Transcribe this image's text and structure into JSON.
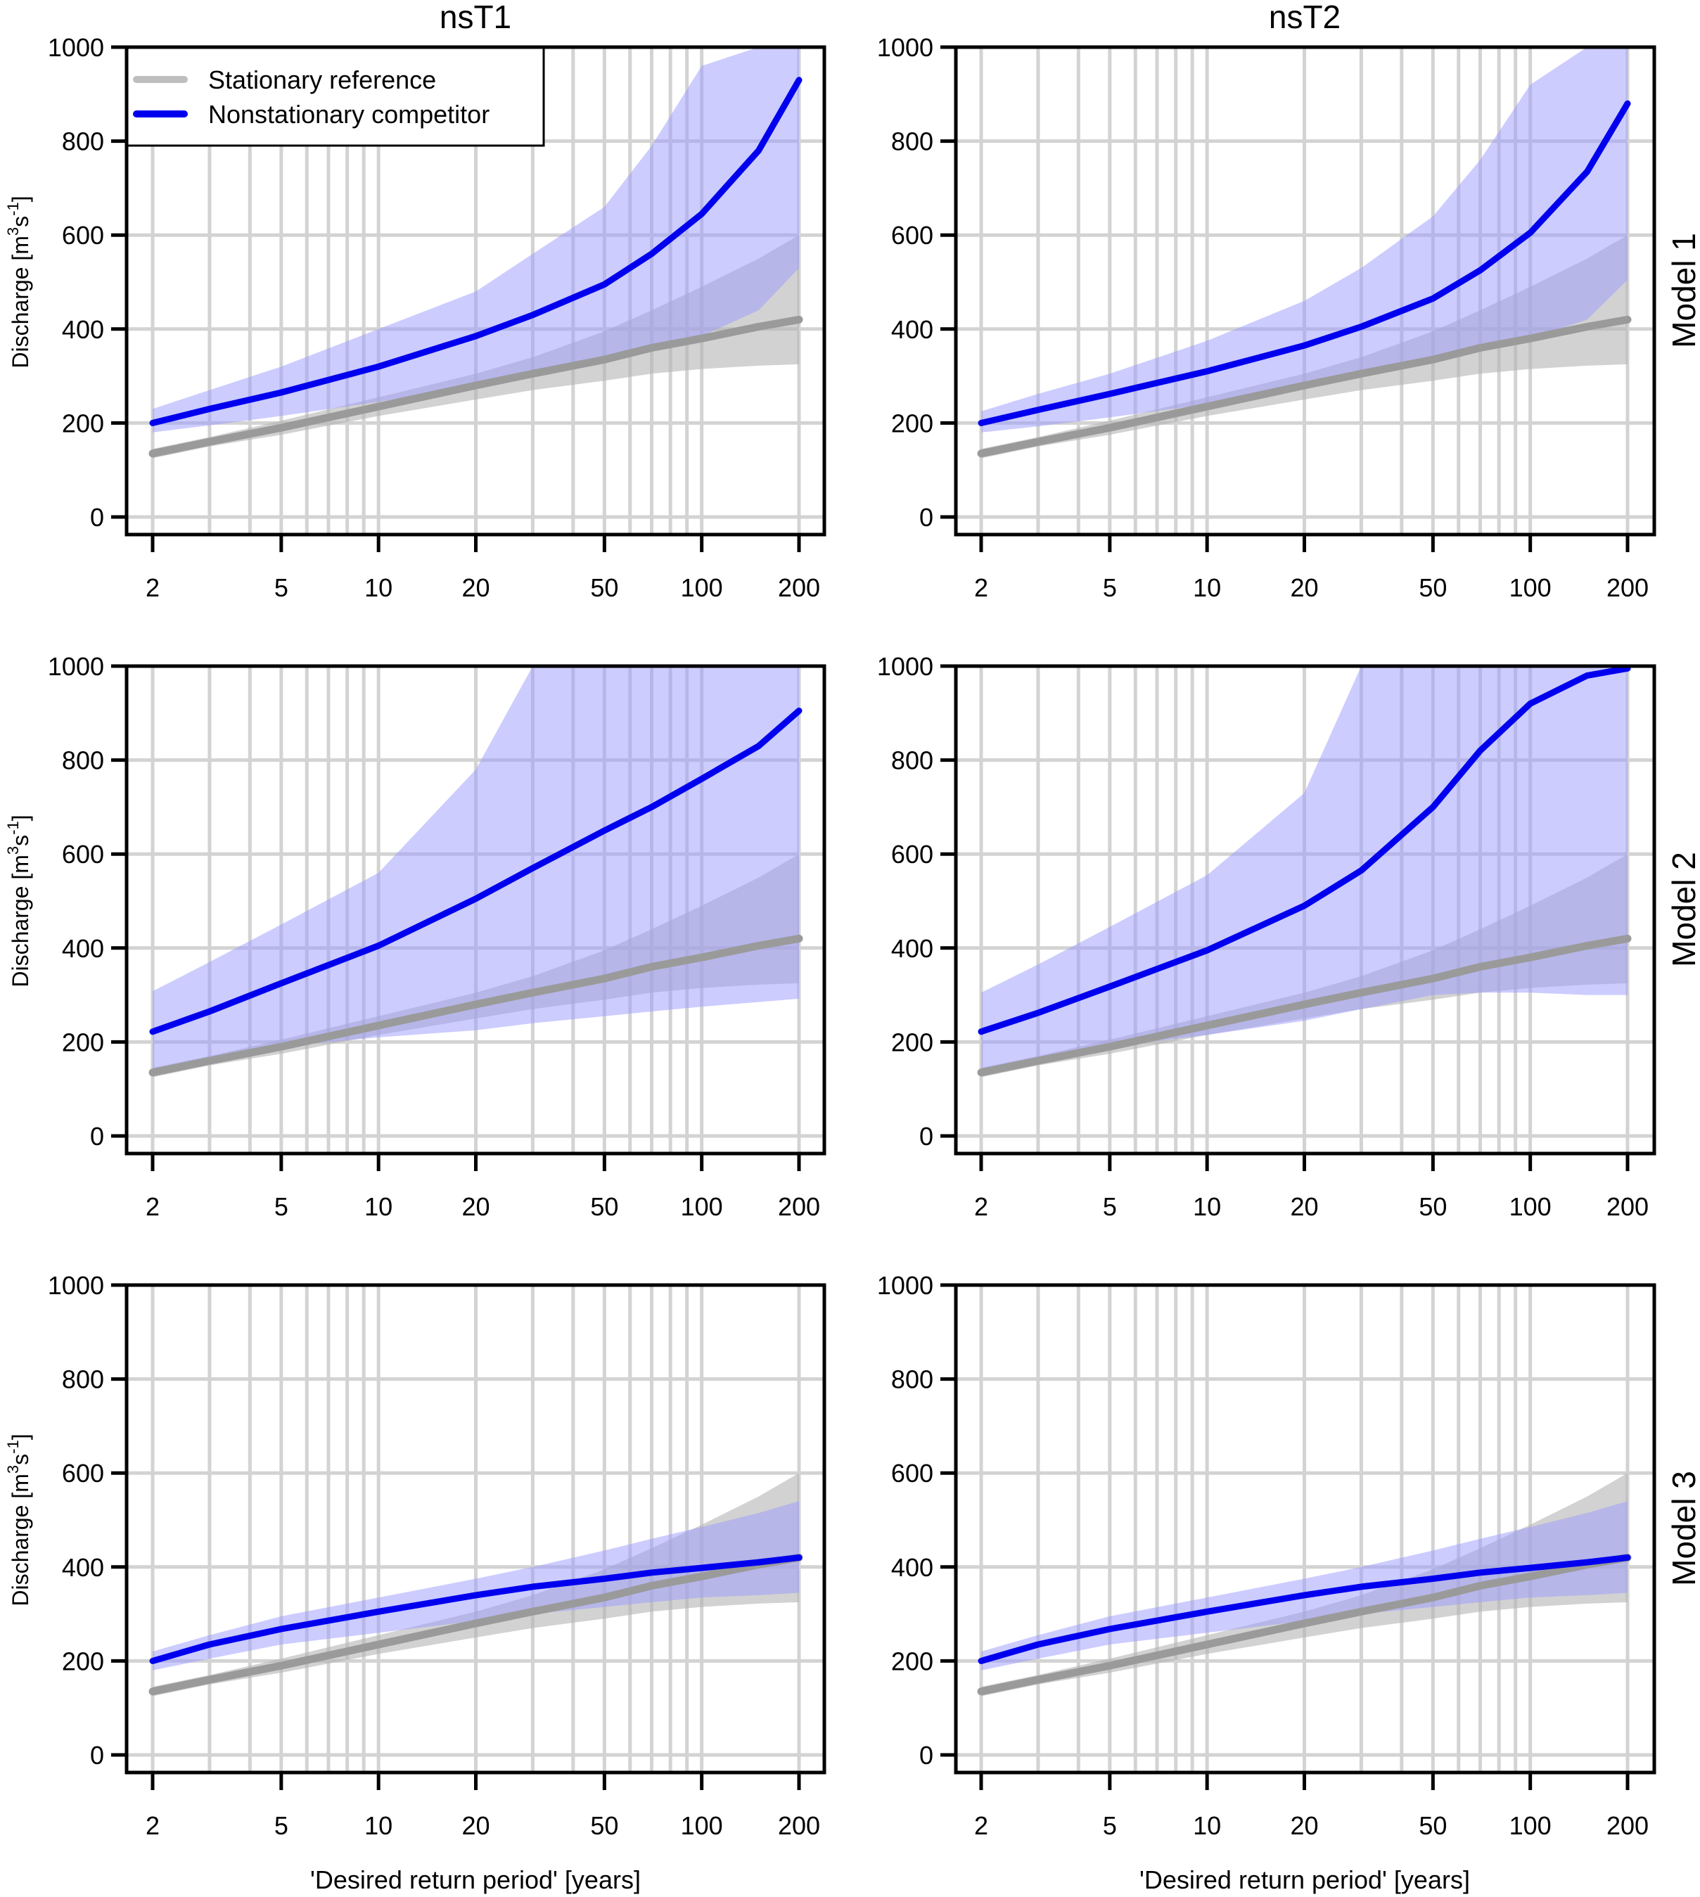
{
  "figure": {
    "column_titles": [
      "nsT1",
      "nsT2"
    ],
    "row_labels": [
      "Model 1",
      "Model 2",
      "Model 3"
    ],
    "ylabel": "Discharge [m3s-1]",
    "ylabel_parts": {
      "base": "Discharge [m",
      "sup1": "3",
      "mid": "s",
      "sup2": "-1",
      "end": "]"
    },
    "xlabel": "'Desired return period' [years]",
    "legend": {
      "position": "top-left",
      "entries": [
        {
          "label": "Stationary reference",
          "color": "#bebebe"
        },
        {
          "label": "Nonstationary competitor",
          "color": "#0000ee"
        }
      ]
    },
    "colors": {
      "stationary_line": "#9a9a9a",
      "stationary_band": "#b4b4b4",
      "nonstationary_line": "#0000ee",
      "nonstationary_band": "#9999ff",
      "grid": "#d3d3d3",
      "axis": "#000000"
    }
  },
  "chart_data": [
    {
      "type": "line",
      "panel": "nsT1 / Model 1",
      "title": "nsT1",
      "row_label": "Model 1",
      "xlabel": "",
      "ylabel": "Discharge [m3s-1]",
      "xscale": "log",
      "xlim": [
        2,
        200
      ],
      "ylim": [
        0,
        1000
      ],
      "xticks": [
        2,
        5,
        10,
        20,
        50,
        100,
        200
      ],
      "yticks": [
        0,
        200,
        400,
        600,
        800,
        1000
      ],
      "grid": true,
      "legend": "top-left",
      "x": [
        2,
        3,
        5,
        10,
        20,
        30,
        50,
        70,
        100,
        150,
        200
      ],
      "series": [
        {
          "name": "Stationary reference",
          "kind": "line",
          "values": [
            135,
            160,
            190,
            235,
            280,
            305,
            335,
            360,
            380,
            405,
            420
          ]
        },
        {
          "name": "Stationary reference 90% band",
          "kind": "band",
          "lower": [
            125,
            150,
            175,
            215,
            250,
            270,
            290,
            305,
            315,
            322,
            325
          ],
          "upper": [
            145,
            170,
            205,
            255,
            305,
            340,
            395,
            440,
            490,
            550,
            600
          ]
        },
        {
          "name": "Nonstationary competitor",
          "kind": "line",
          "values": [
            200,
            230,
            265,
            320,
            385,
            430,
            495,
            560,
            645,
            780,
            930
          ]
        },
        {
          "name": "Nonstationary competitor 90% band",
          "kind": "band",
          "lower": [
            180,
            195,
            215,
            245,
            280,
            300,
            335,
            360,
            385,
            440,
            530
          ],
          "upper": [
            230,
            270,
            320,
            400,
            480,
            560,
            660,
            790,
            960,
            1000,
            1000
          ]
        }
      ]
    },
    {
      "type": "line",
      "panel": "nsT2 / Model 1",
      "title": "nsT2",
      "row_label": "Model 1",
      "xscale": "log",
      "xlim": [
        2,
        200
      ],
      "ylim": [
        0,
        1000
      ],
      "xticks": [
        2,
        5,
        10,
        20,
        50,
        100,
        200
      ],
      "yticks": [
        0,
        200,
        400,
        600,
        800,
        1000
      ],
      "grid": true,
      "x": [
        2,
        3,
        5,
        10,
        20,
        30,
        50,
        70,
        100,
        150,
        200
      ],
      "series": [
        {
          "name": "Stationary reference",
          "kind": "line",
          "values": [
            135,
            160,
            190,
            235,
            280,
            305,
            335,
            360,
            380,
            405,
            420
          ]
        },
        {
          "name": "Stationary reference 90% band",
          "kind": "band",
          "lower": [
            125,
            150,
            175,
            215,
            250,
            270,
            290,
            305,
            315,
            322,
            325
          ],
          "upper": [
            145,
            170,
            205,
            255,
            305,
            340,
            395,
            440,
            490,
            550,
            600
          ]
        },
        {
          "name": "Nonstationary competitor",
          "kind": "line",
          "values": [
            200,
            228,
            262,
            310,
            365,
            405,
            465,
            525,
            605,
            735,
            880
          ]
        },
        {
          "name": "Nonstationary competitor 90% band",
          "kind": "band",
          "lower": [
            180,
            193,
            212,
            240,
            275,
            300,
            330,
            355,
            380,
            420,
            505
          ],
          "upper": [
            225,
            262,
            305,
            375,
            460,
            530,
            640,
            760,
            920,
            1000,
            1000
          ]
        }
      ]
    },
    {
      "type": "line",
      "panel": "nsT1 / Model 2",
      "title": "nsT1",
      "row_label": "Model 2",
      "xscale": "log",
      "xlim": [
        2,
        200
      ],
      "ylim": [
        0,
        1000
      ],
      "xticks": [
        2,
        5,
        10,
        20,
        50,
        100,
        200
      ],
      "yticks": [
        0,
        200,
        400,
        600,
        800,
        1000
      ],
      "grid": true,
      "x": [
        2,
        3,
        5,
        10,
        20,
        30,
        50,
        70,
        100,
        150,
        200
      ],
      "series": [
        {
          "name": "Stationary reference",
          "kind": "line",
          "values": [
            135,
            160,
            190,
            235,
            280,
            305,
            335,
            360,
            380,
            405,
            420
          ]
        },
        {
          "name": "Stationary reference 90% band",
          "kind": "band",
          "lower": [
            125,
            150,
            175,
            215,
            250,
            270,
            290,
            305,
            315,
            322,
            325
          ],
          "upper": [
            145,
            170,
            205,
            255,
            305,
            340,
            395,
            440,
            490,
            550,
            600
          ]
        },
        {
          "name": "Nonstationary competitor",
          "kind": "line",
          "values": [
            222,
            265,
            325,
            405,
            505,
            570,
            650,
            700,
            760,
            830,
            905
          ]
        },
        {
          "name": "Nonstationary competitor 90% band",
          "kind": "band",
          "lower": [
            140,
            165,
            190,
            210,
            225,
            240,
            255,
            265,
            275,
            285,
            292
          ],
          "upper": [
            308,
            370,
            450,
            560,
            780,
            1000,
            1000,
            1000,
            1000,
            1000,
            1000
          ]
        }
      ]
    },
    {
      "type": "line",
      "panel": "nsT2 / Model 2",
      "title": "nsT2",
      "row_label": "Model 2",
      "xscale": "log",
      "xlim": [
        2,
        200
      ],
      "ylim": [
        0,
        1000
      ],
      "xticks": [
        2,
        5,
        10,
        20,
        50,
        100,
        200
      ],
      "yticks": [
        0,
        200,
        400,
        600,
        800,
        1000
      ],
      "grid": true,
      "x": [
        2,
        3,
        5,
        10,
        20,
        30,
        50,
        70,
        100,
        150,
        200
      ],
      "series": [
        {
          "name": "Stationary reference",
          "kind": "line",
          "values": [
            135,
            160,
            190,
            235,
            280,
            305,
            335,
            360,
            380,
            405,
            420
          ]
        },
        {
          "name": "Stationary reference 90% band",
          "kind": "band",
          "lower": [
            125,
            150,
            175,
            215,
            250,
            270,
            290,
            305,
            315,
            322,
            325
          ],
          "upper": [
            145,
            170,
            205,
            255,
            305,
            340,
            395,
            440,
            490,
            550,
            600
          ]
        },
        {
          "name": "Nonstationary competitor",
          "kind": "line",
          "values": [
            222,
            262,
            318,
            395,
            490,
            565,
            700,
            820,
            920,
            980,
            995
          ]
        },
        {
          "name": "Nonstationary competitor 90% band",
          "kind": "band",
          "lower": [
            140,
            163,
            190,
            215,
            245,
            270,
            300,
            305,
            305,
            300,
            300
          ],
          "upper": [
            305,
            365,
            445,
            555,
            730,
            1000,
            1000,
            1000,
            1000,
            1000,
            1000
          ]
        }
      ]
    },
    {
      "type": "line",
      "panel": "nsT1 / Model 3",
      "title": "nsT1",
      "row_label": "Model 3",
      "xlabel": "'Desired return period' [years]",
      "xscale": "log",
      "xlim": [
        2,
        200
      ],
      "ylim": [
        0,
        1000
      ],
      "xticks": [
        2,
        5,
        10,
        20,
        50,
        100,
        200
      ],
      "yticks": [
        0,
        200,
        400,
        600,
        800,
        1000
      ],
      "grid": true,
      "x": [
        2,
        3,
        5,
        10,
        20,
        30,
        50,
        70,
        100,
        150,
        200
      ],
      "series": [
        {
          "name": "Stationary reference",
          "kind": "line",
          "values": [
            135,
            160,
            190,
            235,
            280,
            305,
            335,
            360,
            380,
            405,
            420
          ]
        },
        {
          "name": "Stationary reference 90% band",
          "kind": "band",
          "lower": [
            125,
            150,
            175,
            215,
            250,
            270,
            290,
            305,
            315,
            322,
            325
          ],
          "upper": [
            145,
            170,
            205,
            255,
            305,
            340,
            395,
            440,
            490,
            550,
            600
          ]
        },
        {
          "name": "Nonstationary competitor",
          "kind": "line",
          "values": [
            200,
            235,
            268,
            305,
            340,
            358,
            375,
            388,
            398,
            410,
            420
          ]
        },
        {
          "name": "Nonstationary competitor 90% band",
          "kind": "band",
          "lower": [
            180,
            205,
            235,
            260,
            285,
            300,
            315,
            325,
            335,
            340,
            345
          ],
          "upper": [
            220,
            255,
            295,
            335,
            375,
            400,
            435,
            460,
            485,
            515,
            540
          ]
        }
      ]
    },
    {
      "type": "line",
      "panel": "nsT2 / Model 3",
      "title": "nsT2",
      "row_label": "Model 3",
      "xlabel": "'Desired return period' [years]",
      "xscale": "log",
      "xlim": [
        2,
        200
      ],
      "ylim": [
        0,
        1000
      ],
      "xticks": [
        2,
        5,
        10,
        20,
        50,
        100,
        200
      ],
      "yticks": [
        0,
        200,
        400,
        600,
        800,
        1000
      ],
      "grid": true,
      "x": [
        2,
        3,
        5,
        10,
        20,
        30,
        50,
        70,
        100,
        150,
        200
      ],
      "series": [
        {
          "name": "Stationary reference",
          "kind": "line",
          "values": [
            135,
            160,
            190,
            235,
            280,
            305,
            335,
            360,
            380,
            405,
            420
          ]
        },
        {
          "name": "Stationary reference 90% band",
          "kind": "band",
          "lower": [
            125,
            150,
            175,
            215,
            250,
            270,
            290,
            305,
            315,
            322,
            325
          ],
          "upper": [
            145,
            170,
            205,
            255,
            305,
            340,
            395,
            440,
            490,
            550,
            600
          ]
        },
        {
          "name": "Nonstationary competitor",
          "kind": "line",
          "values": [
            200,
            235,
            268,
            305,
            340,
            358,
            375,
            388,
            398,
            410,
            420
          ]
        },
        {
          "name": "Nonstationary competitor 90% band",
          "kind": "band",
          "lower": [
            180,
            205,
            235,
            260,
            285,
            300,
            315,
            325,
            335,
            340,
            345
          ],
          "upper": [
            220,
            255,
            295,
            335,
            375,
            400,
            435,
            460,
            485,
            515,
            540
          ]
        }
      ]
    }
  ]
}
